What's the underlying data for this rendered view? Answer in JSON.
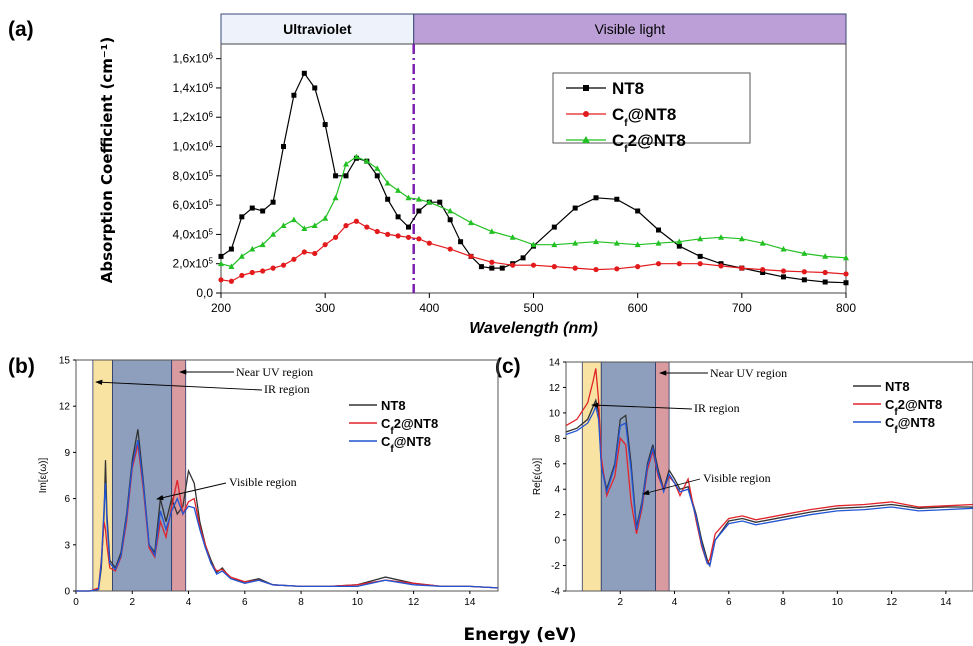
{
  "chart_data": [
    {
      "panel": "(a)",
      "type": "line",
      "ylabel": "Absorption Coefficient (cm⁻¹)",
      "xlabel": "Wavelength (nm)",
      "xlim": [
        200,
        800
      ],
      "ylim": [
        0,
        1700000
      ],
      "xticks": [
        "200",
        "300",
        "400",
        "500",
        "600",
        "700",
        "800"
      ],
      "yticks": [
        {
          "v": 0,
          "m": "0,0",
          "e": ""
        },
        {
          "v": 200000,
          "m": "2,0x10",
          "e": "5"
        },
        {
          "v": 400000,
          "m": "4,0x10",
          "e": "5"
        },
        {
          "v": 600000,
          "m": "6,0x10",
          "e": "5"
        },
        {
          "v": 800000,
          "m": "8,0x10",
          "e": "5"
        },
        {
          "v": 1000000,
          "m": "1,0x10",
          "e": "6"
        },
        {
          "v": 1200000,
          "m": "1,2x10",
          "e": "6"
        },
        {
          "v": 1400000,
          "m": "1,4x10",
          "e": "6"
        },
        {
          "v": 1600000,
          "m": "1,6x10",
          "e": "6"
        }
      ],
      "bands": [
        {
          "label": "Ultraviolet",
          "from": 200,
          "to": 385,
          "color": "#eef3fb"
        },
        {
          "label": "Visible light",
          "from": 385,
          "to": 800,
          "color": "#bb9fd6"
        }
      ],
      "divider_x": 385,
      "divider_color": "#7a1fb0",
      "series": [
        {
          "name": "NT8",
          "sub": "",
          "name2": "",
          "color": "#000000",
          "marker": "square",
          "x": [
            200,
            210,
            220,
            230,
            240,
            250,
            260,
            270,
            280,
            290,
            300,
            310,
            320,
            330,
            340,
            350,
            360,
            370,
            380,
            390,
            400,
            410,
            420,
            430,
            440,
            450,
            460,
            470,
            480,
            490,
            500,
            520,
            540,
            560,
            580,
            600,
            620,
            640,
            660,
            680,
            700,
            720,
            740,
            760,
            780,
            800
          ],
          "y": [
            250000,
            300000,
            520000,
            580000,
            560000,
            620000,
            1000000,
            1350000,
            1500000,
            1400000,
            1150000,
            800000,
            800000,
            920000,
            900000,
            800000,
            640000,
            520000,
            450000,
            560000,
            620000,
            620000,
            500000,
            350000,
            250000,
            180000,
            170000,
            170000,
            200000,
            240000,
            320000,
            450000,
            580000,
            650000,
            640000,
            560000,
            430000,
            320000,
            250000,
            200000,
            170000,
            140000,
            110000,
            90000,
            75000,
            70000
          ]
        },
        {
          "name": "C",
          "sub": "f",
          "name2": "@NT8",
          "color": "#e31a1c",
          "marker": "circle",
          "x": [
            200,
            210,
            220,
            230,
            240,
            250,
            260,
            270,
            280,
            290,
            300,
            310,
            320,
            330,
            340,
            350,
            360,
            370,
            380,
            390,
            400,
            420,
            440,
            460,
            480,
            500,
            520,
            540,
            560,
            580,
            600,
            620,
            640,
            660,
            680,
            700,
            720,
            740,
            760,
            780,
            800
          ],
          "y": [
            90000,
            80000,
            120000,
            140000,
            150000,
            170000,
            190000,
            230000,
            280000,
            270000,
            330000,
            380000,
            460000,
            490000,
            450000,
            420000,
            400000,
            390000,
            380000,
            370000,
            340000,
            300000,
            250000,
            210000,
            190000,
            190000,
            180000,
            170000,
            160000,
            165000,
            180000,
            200000,
            200000,
            200000,
            185000,
            170000,
            160000,
            150000,
            145000,
            140000,
            130000
          ]
        },
        {
          "name": "C",
          "sub": "f",
          "name2": "2@NT8",
          "color": "#22c022",
          "marker": "triangle",
          "x": [
            200,
            210,
            220,
            230,
            240,
            250,
            260,
            270,
            280,
            290,
            300,
            310,
            320,
            330,
            340,
            350,
            360,
            370,
            380,
            390,
            400,
            420,
            440,
            460,
            480,
            500,
            520,
            540,
            560,
            580,
            600,
            620,
            640,
            660,
            680,
            700,
            720,
            740,
            760,
            780,
            800
          ],
          "y": [
            200000,
            180000,
            250000,
            300000,
            330000,
            400000,
            460000,
            500000,
            440000,
            460000,
            510000,
            650000,
            880000,
            930000,
            900000,
            850000,
            750000,
            700000,
            650000,
            640000,
            620000,
            560000,
            480000,
            420000,
            380000,
            330000,
            330000,
            340000,
            350000,
            340000,
            330000,
            340000,
            350000,
            370000,
            380000,
            370000,
            340000,
            300000,
            270000,
            250000,
            240000
          ]
        }
      ]
    },
    {
      "panel": "(b)",
      "type": "line",
      "ylabel": "Im[ε(ω)]",
      "xlabel": "Energy (eV)",
      "xlim": [
        0,
        15
      ],
      "ylim": [
        0,
        15
      ],
      "xticks": [
        "0",
        "2",
        "4",
        "6",
        "8",
        "10",
        "12",
        "14"
      ],
      "yticks": [
        "0",
        "3",
        "6",
        "9",
        "12",
        "15"
      ],
      "regions": [
        {
          "name": "IR region",
          "from": 0.6,
          "to": 1.3,
          "color": "#f8e3a2"
        },
        {
          "name": "Visible region",
          "from": 1.3,
          "to": 3.4,
          "color": "#8e9fbd"
        },
        {
          "name": "Near UV region",
          "from": 3.4,
          "to": 3.9,
          "color": "#d99aa0"
        }
      ],
      "series": [
        {
          "name": "NT8",
          "sub": "",
          "name2": "",
          "color": "#333333",
          "x": [
            0,
            0.5,
            0.8,
            0.9,
            1.0,
            1.05,
            1.1,
            1.2,
            1.4,
            1.6,
            1.8,
            2.0,
            2.2,
            2.4,
            2.6,
            2.8,
            3.0,
            3.2,
            3.4,
            3.6,
            3.8,
            4.0,
            4.2,
            4.4,
            4.6,
            4.8,
            5.0,
            5.2,
            5.5,
            6.0,
            6.5,
            7,
            8,
            9,
            10,
            11,
            12,
            13,
            14,
            15
          ],
          "y": [
            0,
            0,
            0.1,
            1.5,
            5.0,
            8.5,
            5.0,
            2.0,
            1.5,
            2.5,
            5.0,
            8.5,
            10.5,
            7.0,
            3.0,
            2.5,
            6.0,
            4.5,
            6.0,
            5.0,
            5.5,
            7.8,
            7.0,
            4.5,
            3.0,
            2.0,
            1.2,
            1.5,
            0.8,
            0.6,
            0.8,
            0.4,
            0.3,
            0.3,
            0.4,
            0.9,
            0.5,
            0.3,
            0.3,
            0.2
          ]
        },
        {
          "name": "C",
          "sub": "f",
          "name2": "2@NT8",
          "color": "#e0242a",
          "x": [
            0,
            0.5,
            0.8,
            0.9,
            1.0,
            1.05,
            1.1,
            1.2,
            1.4,
            1.6,
            1.8,
            2.0,
            2.2,
            2.4,
            2.6,
            2.8,
            3.0,
            3.2,
            3.4,
            3.6,
            3.8,
            4.0,
            4.2,
            4.4,
            4.6,
            4.8,
            5.0,
            5.2,
            5.5,
            6.0,
            6.5,
            7,
            8,
            9,
            10,
            11,
            12,
            13,
            14,
            15
          ],
          "y": [
            0,
            0,
            0.2,
            2.0,
            4.5,
            4.0,
            3.0,
            1.5,
            1.3,
            2.2,
            4.5,
            8.0,
            9.5,
            6.5,
            2.8,
            2.2,
            4.5,
            3.5,
            5.5,
            7.2,
            5.0,
            5.8,
            6.0,
            4.2,
            3.0,
            1.8,
            1.3,
            1.4,
            0.9,
            0.6,
            0.7,
            0.4,
            0.3,
            0.3,
            0.4,
            0.7,
            0.5,
            0.3,
            0.3,
            0.2
          ]
        },
        {
          "name": "C",
          "sub": "f",
          "name2": "@NT8",
          "color": "#2255d4",
          "x": [
            0,
            0.5,
            0.8,
            0.9,
            1.0,
            1.05,
            1.1,
            1.2,
            1.4,
            1.6,
            1.8,
            2.0,
            2.2,
            2.4,
            2.6,
            2.8,
            3.0,
            3.2,
            3.4,
            3.6,
            3.8,
            4.0,
            4.2,
            4.4,
            4.6,
            4.8,
            5.0,
            5.2,
            5.5,
            6.0,
            6.5,
            7,
            8,
            9,
            10,
            11,
            12,
            13,
            14,
            15
          ],
          "y": [
            0,
            0,
            0.1,
            1.8,
            5.5,
            7.0,
            4.5,
            1.8,
            1.4,
            2.3,
            4.8,
            8.2,
            9.8,
            6.8,
            3.0,
            2.3,
            5.2,
            4.0,
            5.2,
            6.0,
            5.0,
            5.5,
            5.4,
            4.0,
            2.8,
            1.8,
            1.1,
            1.3,
            0.8,
            0.5,
            0.7,
            0.4,
            0.3,
            0.3,
            0.3,
            0.7,
            0.4,
            0.3,
            0.3,
            0.2
          ]
        }
      ]
    },
    {
      "panel": "(c)",
      "type": "line",
      "ylabel": "Re[ε(ω)]",
      "xlabel": "Energy (eV)",
      "xlim": [
        0,
        15
      ],
      "ylim": [
        -4,
        14
      ],
      "xticks": [
        "2",
        "4",
        "6",
        "8",
        "10",
        "12",
        "14"
      ],
      "yticks": [
        "-4",
        "-2",
        "0",
        "2",
        "4",
        "6",
        "8",
        "10",
        "12",
        "14"
      ],
      "regions": [
        {
          "name": "IR region",
          "from": 0.6,
          "to": 1.3,
          "color": "#f8e3a2"
        },
        {
          "name": "Visible region",
          "from": 1.3,
          "to": 3.3,
          "color": "#8e9fbd"
        },
        {
          "name": "Near UV region",
          "from": 3.3,
          "to": 3.8,
          "color": "#d99aa0"
        }
      ],
      "series": [
        {
          "name": "NT8",
          "sub": "",
          "name2": "",
          "color": "#333333",
          "x": [
            0,
            0.4,
            0.8,
            1.0,
            1.1,
            1.2,
            1.3,
            1.5,
            1.8,
            2.0,
            2.2,
            2.4,
            2.6,
            2.8,
            3.0,
            3.2,
            3.4,
            3.6,
            3.8,
            4.0,
            4.2,
            4.5,
            4.8,
            5.0,
            5.2,
            5.3,
            5.5,
            6.0,
            6.5,
            7,
            8,
            9,
            10,
            11,
            12,
            13,
            14,
            15
          ],
          "y": [
            8.5,
            8.8,
            9.5,
            10.5,
            11.0,
            10.0,
            6.0,
            4.0,
            6.0,
            9.5,
            9.8,
            6.0,
            1.0,
            3.0,
            6.0,
            7.5,
            5.5,
            4.0,
            5.5,
            4.8,
            4.0,
            4.2,
            2.0,
            0.0,
            -1.5,
            -2.0,
            0.0,
            1.5,
            1.7,
            1.4,
            1.8,
            2.2,
            2.5,
            2.6,
            2.8,
            2.5,
            2.6,
            2.6
          ]
        },
        {
          "name": "C",
          "sub": "f",
          "name2": "2@NT8",
          "color": "#e0242a",
          "x": [
            0,
            0.4,
            0.8,
            1.0,
            1.1,
            1.2,
            1.3,
            1.5,
            1.8,
            2.0,
            2.2,
            2.4,
            2.6,
            2.8,
            3.0,
            3.2,
            3.4,
            3.6,
            3.8,
            4.0,
            4.2,
            4.5,
            4.8,
            5.0,
            5.2,
            5.3,
            5.5,
            6.0,
            6.5,
            7,
            8,
            9,
            10,
            11,
            12,
            13,
            14,
            15
          ],
          "y": [
            9.0,
            9.5,
            10.8,
            12.5,
            13.5,
            11.0,
            6.5,
            3.5,
            5.0,
            8.0,
            7.5,
            3.0,
            0.5,
            2.5,
            5.5,
            7.0,
            5.0,
            4.0,
            5.0,
            4.5,
            3.5,
            4.8,
            1.5,
            -0.5,
            -1.8,
            -1.5,
            0.5,
            1.7,
            1.9,
            1.6,
            2.0,
            2.4,
            2.7,
            2.8,
            3.0,
            2.6,
            2.7,
            2.8
          ]
        },
        {
          "name": "C",
          "sub": "f",
          "name2": "@NT8",
          "color": "#2255d4",
          "x": [
            0,
            0.4,
            0.8,
            1.0,
            1.1,
            1.2,
            1.3,
            1.5,
            1.8,
            2.0,
            2.2,
            2.4,
            2.6,
            2.8,
            3.0,
            3.2,
            3.4,
            3.6,
            3.8,
            4.0,
            4.2,
            4.5,
            4.8,
            5.0,
            5.2,
            5.3,
            5.5,
            6.0,
            6.5,
            7,
            8,
            9,
            10,
            11,
            12,
            13,
            14,
            15
          ],
          "y": [
            8.3,
            8.6,
            9.2,
            10.0,
            10.5,
            9.5,
            5.8,
            3.8,
            5.8,
            9.0,
            9.2,
            5.5,
            0.8,
            2.8,
            5.8,
            7.2,
            5.2,
            3.8,
            5.2,
            4.5,
            3.8,
            4.0,
            1.8,
            -0.3,
            -1.8,
            -2.0,
            0.0,
            1.3,
            1.5,
            1.2,
            1.6,
            2.0,
            2.3,
            2.4,
            2.6,
            2.3,
            2.4,
            2.5
          ]
        }
      ]
    }
  ],
  "labels": {
    "a": "(a)",
    "b": "(b)",
    "c": "(c)",
    "shared_xlabel": "Energy (eV)"
  },
  "arrows": {
    "ir": "IR region",
    "visible": "Visible region",
    "nearuv": "Near UV region"
  }
}
